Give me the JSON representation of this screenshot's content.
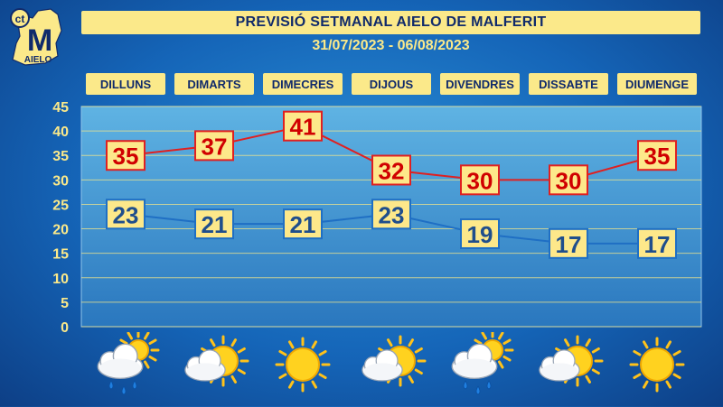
{
  "header": {
    "title": "PREVISIÓ SETMANAL AIELO DE MALFERIT",
    "dates": "31/07/2023 - 06/08/2023"
  },
  "logo": {
    "text": "AIELO",
    "letter": "M"
  },
  "chart_data": {
    "type": "line",
    "categories": [
      "DILLUNS",
      "DIMARTS",
      "DIMECRES",
      "DIJOUS",
      "DIVENDRES",
      "DISSABTE",
      "DIUMENGE"
    ],
    "series": [
      {
        "values": [
          35,
          37,
          41,
          32,
          30,
          30,
          35
        ],
        "color": "#e02020"
      },
      {
        "values": [
          23,
          21,
          21,
          23,
          19,
          17,
          17
        ],
        "color": "#1f6fc4"
      }
    ],
    "yticks": [
      0,
      5,
      10,
      15,
      20,
      25,
      30,
      35,
      40,
      45
    ],
    "ylim": [
      0,
      45
    ],
    "grid": true
  },
  "weather_icons": [
    "rain-sun-icon",
    "cloud-sun-icon",
    "sun-icon",
    "cloud-sun-icon",
    "rain-sun-icon",
    "cloud-sun-icon",
    "sun-icon"
  ],
  "colors": {
    "title_bg": "#fbe98a",
    "title_text": "#102a6b",
    "max_label_bg": "#fde88a",
    "max_label_text": "#d00000",
    "min_label_text": "#1f4e8c"
  }
}
